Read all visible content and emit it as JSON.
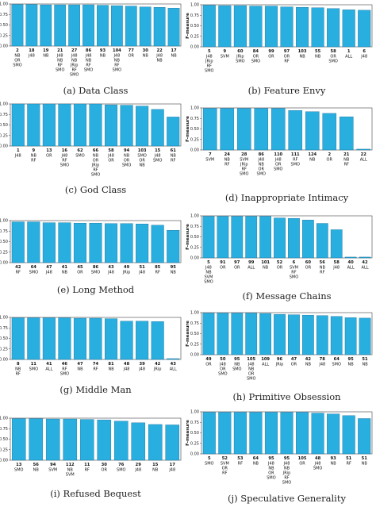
{
  "figure": {
    "y_axis_label": "F-measure",
    "y_ticks": [
      "0.00",
      "0.25",
      "0.50",
      "0.75",
      "1.00"
    ],
    "bar_color": "#29aee0",
    "bar_edge_color": "#1b6f96"
  },
  "chart_data": [
    {
      "type": "bar",
      "caption": "(a) Data Class",
      "ylabel": "F-measure",
      "ylim": [
        0,
        1
      ],
      "categories": [
        "2",
        "18",
        "19",
        "21",
        "27",
        "86",
        "93",
        "104",
        "77",
        "30",
        "22",
        "17"
      ],
      "sublabels": [
        [
          "NB",
          "OR",
          "SMO"
        ],
        [
          "J48"
        ],
        [
          "NB"
        ],
        [
          "J48",
          "NB",
          "RF",
          "SMO"
        ],
        [
          "J48",
          "NB",
          "JRip",
          "RF",
          "SMO"
        ],
        [
          "J48",
          "NB",
          "RF",
          "SMO"
        ],
        [
          "NB"
        ],
        [
          "J48",
          "NB",
          "RF",
          "SMO"
        ],
        [
          "OR"
        ],
        [
          "NB"
        ],
        [
          "J48",
          "NB"
        ],
        [
          "NB"
        ]
      ],
      "values": [
        0.99,
        0.99,
        0.98,
        0.98,
        0.98,
        0.98,
        0.97,
        0.96,
        0.95,
        0.93,
        0.92,
        0.9
      ]
    },
    {
      "type": "bar",
      "caption": "(b) Feature Envy",
      "ylabel": "F-measure",
      "ylim": [
        0,
        1
      ],
      "categories": [
        "5",
        "9",
        "60",
        "84",
        "99",
        "97",
        "103",
        "55",
        "58",
        "1",
        "6"
      ],
      "sublabels": [
        [
          "J48",
          "JRip",
          "RF",
          "SMO"
        ],
        [
          "SVM"
        ],
        [
          "JRip",
          "SMO"
        ],
        [
          "OR",
          "SMO"
        ],
        [
          "OR"
        ],
        [
          "OR",
          "RF"
        ],
        [
          "NB"
        ],
        [
          "NB"
        ],
        [
          "OR",
          "SMO"
        ],
        [
          "ALL"
        ],
        [
          "J48"
        ]
      ],
      "values": [
        0.99,
        0.98,
        0.98,
        0.97,
        0.97,
        0.95,
        0.94,
        0.93,
        0.91,
        0.88,
        0.87
      ]
    },
    {
      "type": "bar",
      "caption": "(c) God Class",
      "ylabel": "F-measure",
      "ylim": [
        0,
        1
      ],
      "categories": [
        "1",
        "9",
        "13",
        "16",
        "62",
        "66",
        "58",
        "94",
        "103",
        "15",
        "61"
      ],
      "sublabels": [
        [
          "J48"
        ],
        [
          "NB",
          "RF"
        ],
        [
          "OR"
        ],
        [
          "J48",
          "RF",
          "SMO"
        ],
        [
          "SMO"
        ],
        [
          "NB",
          "OR",
          "JRip",
          "RF",
          "SMO"
        ],
        [
          "J48",
          "OR"
        ],
        [
          "NB",
          "OR",
          "SMO"
        ],
        [
          "SMO",
          "OR",
          "NB"
        ],
        [
          "J48",
          "SMO"
        ],
        [
          "NB",
          "RF"
        ]
      ],
      "values": [
        1.0,
        1.0,
        1.0,
        1.0,
        1.0,
        1.0,
        0.98,
        0.97,
        0.95,
        0.87,
        0.69
      ]
    },
    {
      "type": "bar",
      "caption": "(d) Inappropriate Intimacy",
      "ylabel": "F-measure",
      "ylim": [
        0,
        1
      ],
      "categories": [
        "7",
        "24",
        "28",
        "86",
        "110",
        "111",
        "124",
        "2",
        "21",
        "22"
      ],
      "sublabels": [
        [
          "SVM"
        ],
        [
          "NB",
          "RF"
        ],
        [
          "SVM",
          "JRip",
          "RF",
          "SMO"
        ],
        [
          "J48",
          "NB",
          "OR",
          "SMO"
        ],
        [
          "J48",
          "OR",
          "SMO"
        ],
        [
          "RF",
          "SMO"
        ],
        [
          "NB"
        ],
        [
          "OR"
        ],
        [
          "NB",
          "RF"
        ],
        [
          "ALL"
        ]
      ],
      "values": [
        0.99,
        0.99,
        0.99,
        0.99,
        0.99,
        0.94,
        0.91,
        0.87,
        0.79,
        0.02
      ]
    },
    {
      "type": "bar",
      "caption": "(e) Long Method",
      "ylabel": "F-measure",
      "ylim": [
        0,
        1
      ],
      "categories": [
        "42",
        "64",
        "47",
        "41",
        "45",
        "86",
        "43",
        "49",
        "51",
        "85",
        "95"
      ],
      "sublabels": [
        [
          "RF"
        ],
        [
          "SMO"
        ],
        [
          "J48"
        ],
        [
          "NB"
        ],
        [
          "OR"
        ],
        [
          "SMO"
        ],
        [
          "J48"
        ],
        [
          "JRip"
        ],
        [
          "J48"
        ],
        [
          "RF"
        ],
        [
          "NB"
        ]
      ],
      "values": [
        0.97,
        0.97,
        0.95,
        0.95,
        0.94,
        0.94,
        0.93,
        0.93,
        0.92,
        0.89,
        0.77
      ]
    },
    {
      "type": "bar",
      "caption": "(f) Message Chains",
      "ylabel": "F-measure",
      "ylim": [
        0,
        1
      ],
      "categories": [
        "5",
        "91",
        "97",
        "99",
        "101",
        "52",
        "6",
        "60",
        "56",
        "58",
        "40",
        "42"
      ],
      "sublabels": [
        [
          "J48",
          "NB",
          "SVM",
          "SMO"
        ],
        [
          "OR"
        ],
        [
          "OR"
        ],
        [
          "ALL"
        ],
        [
          "NB"
        ],
        [
          "OR"
        ],
        [
          "SVM",
          "RF",
          "SMO"
        ],
        [
          "OR"
        ],
        [
          "NB",
          "RF"
        ],
        [
          "J48"
        ],
        [
          "ALL"
        ],
        [
          "ALL"
        ]
      ],
      "values": [
        0.99,
        0.99,
        0.99,
        0.99,
        0.99,
        0.95,
        0.94,
        0.9,
        0.82,
        0.67,
        0.02,
        0.02
      ]
    },
    {
      "type": "bar",
      "caption": "(g) Middle Man",
      "ylabel": "F-measure",
      "ylim": [
        0,
        1
      ],
      "categories": [
        "8",
        "11",
        "41",
        "46",
        "47",
        "74",
        "81",
        "48",
        "39",
        "42",
        "43"
      ],
      "sublabels": [
        [
          "NB",
          "RF"
        ],
        [
          "SMO"
        ],
        [
          "ALL"
        ],
        [
          "RF",
          "SMO"
        ],
        [
          "NB"
        ],
        [
          "RF"
        ],
        [
          "NB"
        ],
        [
          "J48"
        ],
        [
          "J48"
        ],
        [
          "JRip"
        ],
        [
          "ALL"
        ]
      ],
      "values": [
        0.99,
        0.99,
        0.99,
        0.99,
        0.98,
        0.98,
        0.97,
        0.91,
        0.91,
        0.9,
        0.02
      ]
    },
    {
      "type": "bar",
      "caption": "(h) Primitive Obsession",
      "ylabel": "F-measure",
      "ylim": [
        0,
        1
      ],
      "categories": [
        "49",
        "50",
        "95",
        "105",
        "109",
        "96",
        "47",
        "42",
        "78",
        "64",
        "95",
        "51"
      ],
      "sublabels": [
        [
          "OR"
        ],
        [
          "J48",
          "OR",
          "SMO"
        ],
        [
          "NB",
          "SMO"
        ],
        [
          "J48",
          "NB",
          "OR",
          "SMO"
        ],
        [
          "ALL"
        ],
        [
          "JRip"
        ],
        [
          "OR"
        ],
        [
          "NB"
        ],
        [
          "J48"
        ],
        [
          "SMO"
        ],
        [
          "NB"
        ],
        [
          "NB"
        ]
      ],
      "values": [
        0.99,
        0.99,
        0.99,
        0.99,
        0.98,
        0.96,
        0.95,
        0.94,
        0.93,
        0.91,
        0.88,
        0.87
      ]
    },
    {
      "type": "bar",
      "caption": "(i) Refused Bequest",
      "ylabel": "F-measure",
      "ylim": [
        0,
        1
      ],
      "categories": [
        "13",
        "56",
        "94",
        "112",
        "11",
        "30",
        "76",
        "29",
        "15",
        "17"
      ],
      "sublabels": [
        [
          "SMO"
        ],
        [
          "NB"
        ],
        [
          "SVM"
        ],
        [
          "NB",
          "SVM"
        ],
        [
          "RF"
        ],
        [
          "OR"
        ],
        [
          "SMO"
        ],
        [
          "J48"
        ],
        [
          "NB"
        ],
        [
          "J48"
        ]
      ],
      "values": [
        0.99,
        0.99,
        0.98,
        0.98,
        0.97,
        0.96,
        0.93,
        0.89,
        0.85,
        0.84
      ]
    },
    {
      "type": "bar",
      "caption": "(j) Speculative Generality",
      "ylabel": "F-measure",
      "ylim": [
        0,
        1
      ],
      "categories": [
        "5",
        "52",
        "53",
        "64",
        "95",
        "95",
        "105",
        "48",
        "93",
        "51",
        "51"
      ],
      "sublabels": [
        [
          "SMO"
        ],
        [
          "SVM",
          "OR",
          "RF"
        ],
        [
          "RF"
        ],
        [
          "NB"
        ],
        [
          "J48",
          "NB",
          "OR",
          "SMO"
        ],
        [
          "J48",
          "NB",
          "JRip",
          "RF",
          "SMO"
        ],
        [
          "OR"
        ],
        [
          "J48",
          "SMO"
        ],
        [
          "NB"
        ],
        [
          "RF"
        ],
        [
          "NB"
        ]
      ],
      "values": [
        0.99,
        0.99,
        0.99,
        0.99,
        0.99,
        0.99,
        0.99,
        0.97,
        0.95,
        0.91,
        0.84
      ]
    }
  ]
}
